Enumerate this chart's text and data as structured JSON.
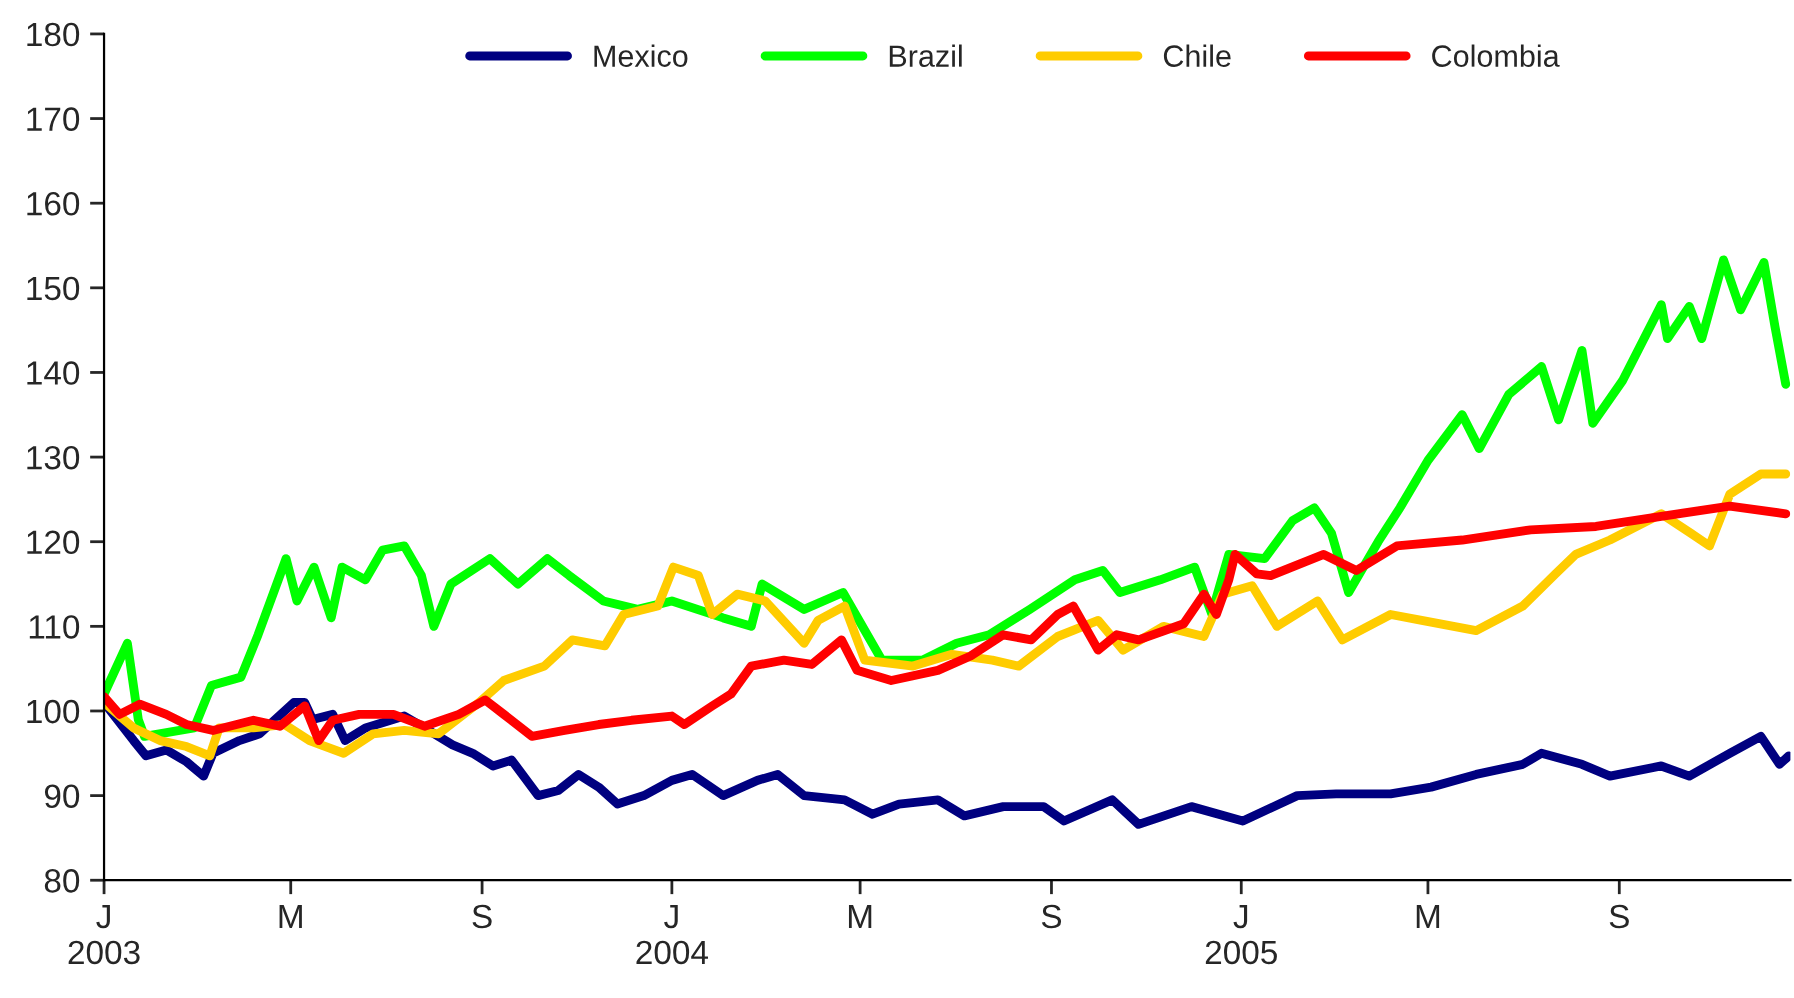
{
  "chart_data": {
    "type": "line",
    "legend": "top",
    "grid": false,
    "marker": "none",
    "line_style": "solid",
    "xlim": [
      "2003-01-01",
      "2005-12-20"
    ],
    "ylim": [
      80,
      180
    ],
    "yticks": [
      80,
      90,
      100,
      110,
      120,
      130,
      140,
      150,
      160,
      170,
      180
    ],
    "xticks": [
      {
        "value": "2003-01-01",
        "label": "J\n2003"
      },
      {
        "value": "2003-05-01",
        "label": "M"
      },
      {
        "value": "2003-09-01",
        "label": "S"
      },
      {
        "value": "2004-01-01",
        "label": "J\n2004"
      },
      {
        "value": "2004-05-01",
        "label": "M"
      },
      {
        "value": "2004-09-01",
        "label": "S"
      },
      {
        "value": "2005-01-01",
        "label": "J\n2005"
      },
      {
        "value": "2005-05-01",
        "label": "M"
      },
      {
        "value": "2005-09-01",
        "label": "S"
      }
    ],
    "series": [
      {
        "name": "Mexico",
        "color": "#000080",
        "x": [
          "2003-01-01",
          "2003-01-20",
          "2003-01-28",
          "2003-02-10",
          "2003-02-23",
          "2003-03-06",
          "2003-03-12",
          "2003-03-29",
          "2003-04-11",
          "2003-05-03",
          "2003-05-10",
          "2003-05-15",
          "2003-05-28",
          "2003-06-05",
          "2003-06-18",
          "2003-07-13",
          "2003-07-26",
          "2003-08-13",
          "2003-08-26",
          "2003-09-08",
          "2003-09-20",
          "2003-10-07",
          "2003-10-20",
          "2003-11-02",
          "2003-11-15",
          "2003-11-27",
          "2003-12-14",
          "2004-01-01",
          "2004-01-14",
          "2004-02-03",
          "2004-02-25",
          "2004-03-09",
          "2004-03-26",
          "2004-04-21",
          "2004-05-09",
          "2004-05-26",
          "2004-06-20",
          "2004-07-07",
          "2004-08-01",
          "2004-08-27",
          "2004-09-09",
          "2004-10-10",
          "2004-10-27",
          "2004-11-30",
          "2005-01-02",
          "2005-02-06",
          "2005-03-03",
          "2005-04-07",
          "2005-05-03",
          "2005-06-01",
          "2005-07-01",
          "2005-07-13",
          "2005-08-08",
          "2005-08-26",
          "2005-09-28",
          "2005-10-16",
          "2005-11-11",
          "2005-12-01",
          "2005-12-13",
          "2005-12-19"
        ],
        "values": [
          101,
          96.5,
          94.7,
          95.4,
          94,
          92.3,
          95,
          96.5,
          97.3,
          101,
          101,
          99,
          99.6,
          96.5,
          98,
          99.4,
          98,
          96,
          95,
          93.5,
          94.2,
          90,
          90.6,
          92.5,
          91,
          89,
          90,
          91.8,
          92.5,
          90,
          91.8,
          92.5,
          90,
          89.5,
          87.8,
          89,
          89.5,
          87.6,
          88.7,
          88.7,
          87,
          89.5,
          86.6,
          88.7,
          87,
          90,
          90.2,
          90.2,
          91,
          92.5,
          93.7,
          95,
          93.7,
          92.3,
          93.5,
          92.3,
          95,
          97,
          93.7,
          94.7
        ]
      },
      {
        "name": "Brazil",
        "color": "#00ff00",
        "x": [
          "2003-01-01",
          "2003-01-16",
          "2003-01-23",
          "2003-01-27",
          "2003-02-28",
          "2003-03-11",
          "2003-03-30",
          "2003-04-10",
          "2003-04-28",
          "2003-05-05",
          "2003-05-16",
          "2003-05-27",
          "2003-06-03",
          "2003-06-18",
          "2003-06-29",
          "2003-07-13",
          "2003-07-24",
          "2003-08-01",
          "2003-08-12",
          "2003-09-06",
          "2003-09-24",
          "2003-10-13",
          "2003-10-27",
          "2003-11-18",
          "2003-12-10",
          "2004-01-01",
          "2004-02-03",
          "2004-02-21",
          "2004-02-28",
          "2004-03-26",
          "2004-04-20",
          "2004-05-15",
          "2004-06-10",
          "2004-07-02",
          "2004-07-23",
          "2004-08-18",
          "2004-09-16",
          "2004-10-04",
          "2004-10-15",
          "2004-11-10",
          "2004-12-02",
          "2004-12-13",
          "2004-12-24",
          "2005-01-16",
          "2005-02-03",
          "2005-02-17",
          "2005-02-28",
          "2005-03-11",
          "2005-03-30",
          "2005-04-13",
          "2005-05-01",
          "2005-05-23",
          "2005-06-03",
          "2005-06-22",
          "2005-07-13",
          "2005-07-24",
          "2005-08-08",
          "2005-08-15",
          "2005-09-03",
          "2005-09-28",
          "2005-10-02",
          "2005-10-16",
          "2005-10-24",
          "2005-11-07",
          "2005-11-18",
          "2005-12-03",
          "2005-12-10",
          "2005-12-17"
        ],
        "values": [
          102,
          108,
          99,
          97,
          98,
          103,
          104,
          109,
          118,
          113,
          117,
          111,
          117,
          115.5,
          119,
          119.5,
          116,
          110,
          115,
          118,
          115,
          118,
          116,
          113,
          112,
          113,
          111,
          110,
          115,
          112,
          114,
          106,
          106,
          108,
          109,
          112,
          115.5,
          116.6,
          114,
          115.5,
          117,
          111.5,
          118.5,
          118,
          122.5,
          124,
          121,
          114,
          120,
          124,
          129.6,
          135,
          131,
          137.4,
          140.7,
          134.4,
          142.6,
          134,
          139,
          148,
          144,
          147.8,
          144,
          153.3,
          147.4,
          153,
          145.5,
          138.6
        ]
      },
      {
        "name": "Chile",
        "color": "#ffcc00",
        "x": [
          "2003-01-01",
          "2003-01-20",
          "2003-02-06",
          "2003-02-23",
          "2003-03-10",
          "2003-03-16",
          "2003-04-07",
          "2003-04-27",
          "2003-05-13",
          "2003-06-04",
          "2003-06-23",
          "2003-07-13",
          "2003-08-04",
          "2003-08-30",
          "2003-09-15",
          "2003-10-11",
          "2003-10-29",
          "2003-11-19",
          "2003-12-01",
          "2003-12-23",
          "2004-01-02",
          "2004-01-18",
          "2004-01-27",
          "2004-02-12",
          "2004-03-01",
          "2004-03-26",
          "2004-04-04",
          "2004-04-21",
          "2004-05-04",
          "2004-06-04",
          "2004-06-29",
          "2004-07-25",
          "2004-08-11",
          "2004-09-05",
          "2004-10-01",
          "2004-10-17",
          "2004-11-12",
          "2004-12-08",
          "2004-12-20",
          "2005-01-08",
          "2005-01-24",
          "2005-02-19",
          "2005-03-07",
          "2005-04-07",
          "2005-04-27",
          "2005-06-01",
          "2005-07-01",
          "2005-07-22",
          "2005-08-04",
          "2005-08-26",
          "2005-09-28",
          "2005-10-17",
          "2005-10-29",
          "2005-11-11",
          "2005-12-01",
          "2005-12-17"
        ],
        "values": [
          101,
          98,
          96.5,
          95.8,
          94.7,
          98,
          98,
          98.4,
          96.5,
          95,
          97.3,
          97.7,
          97.3,
          101,
          103.6,
          105.3,
          108.4,
          107.7,
          111.4,
          112.4,
          117,
          116,
          111.4,
          113.8,
          113,
          108,
          110.7,
          112.4,
          106,
          105.3,
          106.7,
          106,
          105.3,
          108.8,
          110.7,
          107.2,
          110,
          108.8,
          113.8,
          114.8,
          110,
          113,
          108.4,
          111.4,
          110.7,
          109.5,
          112.4,
          116.2,
          118.5,
          120.2,
          123.3,
          121,
          119.5,
          125.6,
          128,
          128
        ]
      },
      {
        "name": "Colombia",
        "color": "#ff0000",
        "x": [
          "2003-01-01",
          "2003-01-11",
          "2003-01-24",
          "2003-02-10",
          "2003-02-23",
          "2003-03-12",
          "2003-04-07",
          "2003-04-24",
          "2003-05-10",
          "2003-05-19",
          "2003-05-28",
          "2003-06-14",
          "2003-07-06",
          "2003-07-26",
          "2003-08-17",
          "2003-09-03",
          "2003-09-15",
          "2003-10-03",
          "2003-10-24",
          "2003-11-15",
          "2003-12-06",
          "2004-01-01",
          "2004-01-09",
          "2004-01-27",
          "2004-02-08",
          "2004-02-21",
          "2004-03-13",
          "2004-03-31",
          "2004-04-19",
          "2004-04-29",
          "2004-05-21",
          "2004-06-20",
          "2004-07-11",
          "2004-08-01",
          "2004-08-19",
          "2004-09-05",
          "2004-09-15",
          "2004-10-01",
          "2004-10-13",
          "2004-10-27",
          "2004-11-25",
          "2004-12-08",
          "2004-12-16",
          "2004-12-24",
          "2004-12-28",
          "2005-01-11",
          "2005-01-20",
          "2005-02-23",
          "2005-03-16",
          "2005-04-11",
          "2005-05-23",
          "2005-07-06",
          "2005-08-17",
          "2005-09-28",
          "2005-11-11",
          "2005-12-17"
        ],
        "values": [
          101.7,
          99.6,
          100.8,
          99.6,
          98.4,
          97.7,
          98.9,
          98.2,
          100.6,
          96.5,
          98.9,
          99.6,
          99.6,
          98.2,
          99.6,
          101.3,
          99.6,
          97,
          97.7,
          98.4,
          98.9,
          99.4,
          98.4,
          100.6,
          102,
          105.3,
          106,
          105.5,
          108.4,
          104.8,
          103.6,
          104.8,
          106.5,
          109,
          108.4,
          111.4,
          112.4,
          107.2,
          109,
          108.4,
          110.3,
          113.8,
          111.4,
          115.5,
          118.5,
          116.2,
          116,
          118.5,
          116.6,
          119.5,
          120.2,
          121.4,
          121.8,
          123,
          124.2,
          123.3
        ]
      }
    ]
  }
}
